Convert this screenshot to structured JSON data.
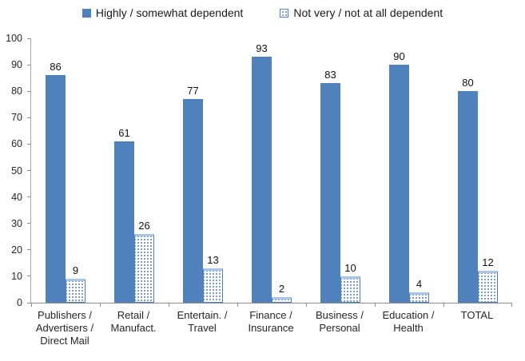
{
  "legend": {
    "items": [
      {
        "label": "Highly / somewhat dependent",
        "style": "solid"
      },
      {
        "label": "Not very / not at all dependent",
        "style": "dotted"
      }
    ]
  },
  "colors": {
    "bar_solid": "#4F81BD",
    "bar_dotted_dot": "#4F81BD",
    "bar_dotted_border": "#4F81BD",
    "bar_dotted_top_cap": "#A9C6E8",
    "axis_line": "#8C8C8C",
    "text": "#1a1a1a"
  },
  "chart_data": {
    "type": "bar",
    "categories": [
      "Publishers /\nAdvertisers /\nDirect Mail",
      "Retail /\nManufact.",
      "Entertain. /\nTravel",
      "Finance /\nInsurance",
      "Business /\nPersonal",
      "Education /\nHealth",
      "TOTAL"
    ],
    "series": [
      {
        "name": "Highly / somewhat dependent",
        "style": "solid",
        "values": [
          86,
          61,
          77,
          93,
          83,
          90,
          80
        ]
      },
      {
        "name": "Not very / not at all dependent",
        "style": "dotted",
        "values": [
          9,
          26,
          13,
          2,
          10,
          4,
          12
        ]
      }
    ],
    "title": "",
    "xlabel": "",
    "ylabel": "",
    "ylim": [
      0,
      100
    ],
    "yticks": [
      0,
      10,
      20,
      30,
      40,
      50,
      60,
      70,
      80,
      90,
      100
    ],
    "grid": false,
    "legend_position": "top",
    "value_labels": true
  }
}
